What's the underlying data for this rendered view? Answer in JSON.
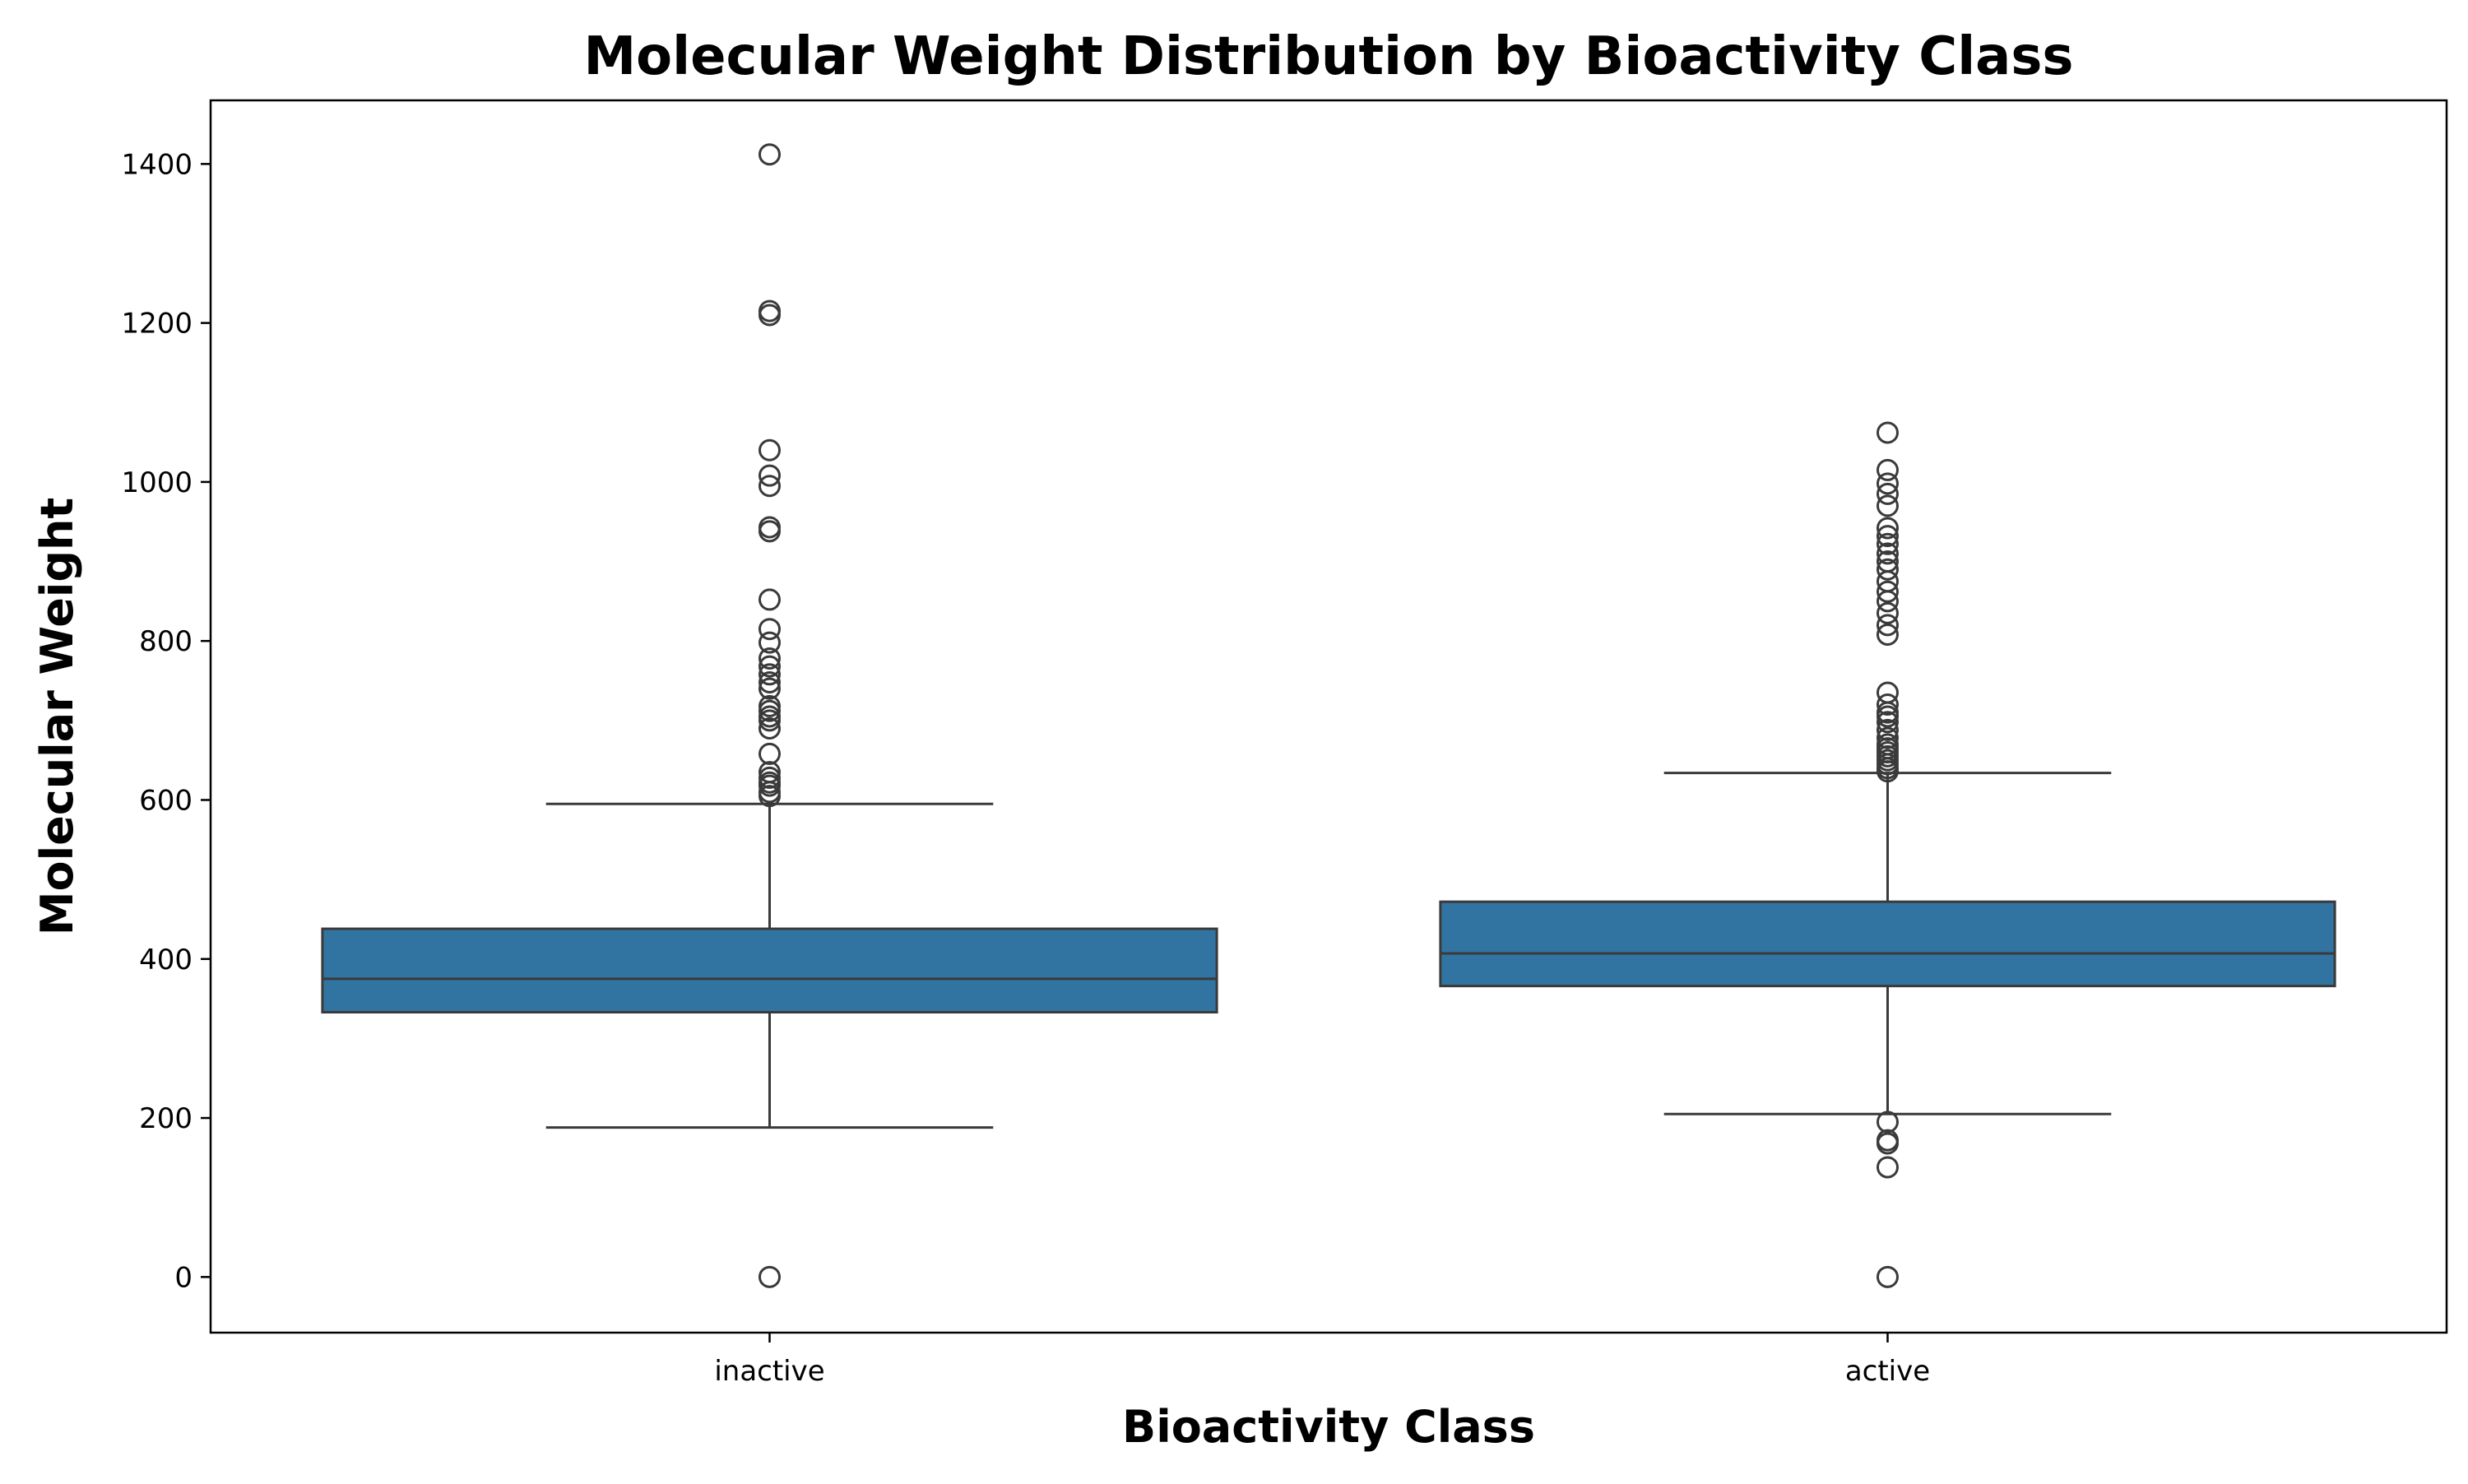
{
  "chart_data": {
    "type": "box",
    "title": "Molecular Weight Distribution by Bioactivity Class",
    "xlabel": "Bioactivity Class",
    "ylabel": "Molecular Weight",
    "ylim": [
      -70,
      1480
    ],
    "yticks": [
      0,
      200,
      400,
      600,
      800,
      1000,
      1200,
      1400
    ],
    "ytick_labels": [
      "0",
      "200",
      "400",
      "600",
      "800",
      "1000",
      "1200",
      "1400"
    ],
    "categories": [
      "inactive",
      "active"
    ],
    "grid": false,
    "legend": "none",
    "colors": {
      "box_fill": "#3274a1",
      "line": "#3a3a3a"
    },
    "boxes": [
      {
        "category": "inactive",
        "whisker_low": 188,
        "q1": 333,
        "median": 375,
        "q3": 438,
        "whisker_high": 595,
        "outliers": [
          0,
          605,
          610,
          618,
          622,
          628,
          635,
          658,
          690,
          700,
          705,
          712,
          718,
          740,
          748,
          758,
          768,
          778,
          798,
          815,
          852,
          938,
          943,
          995,
          1008,
          1040,
          1210,
          1215,
          1412
        ]
      },
      {
        "category": "active",
        "whisker_low": 205,
        "q1": 366,
        "median": 407,
        "q3": 472,
        "whisker_high": 634,
        "outliers": [
          0,
          138,
          168,
          172,
          195,
          636,
          640,
          645,
          650,
          655,
          660,
          665,
          670,
          678,
          688,
          698,
          705,
          710,
          720,
          735,
          808,
          820,
          835,
          850,
          862,
          875,
          890,
          900,
          910,
          922,
          932,
          942,
          970,
          985,
          998,
          1015,
          1062
        ]
      }
    ]
  }
}
